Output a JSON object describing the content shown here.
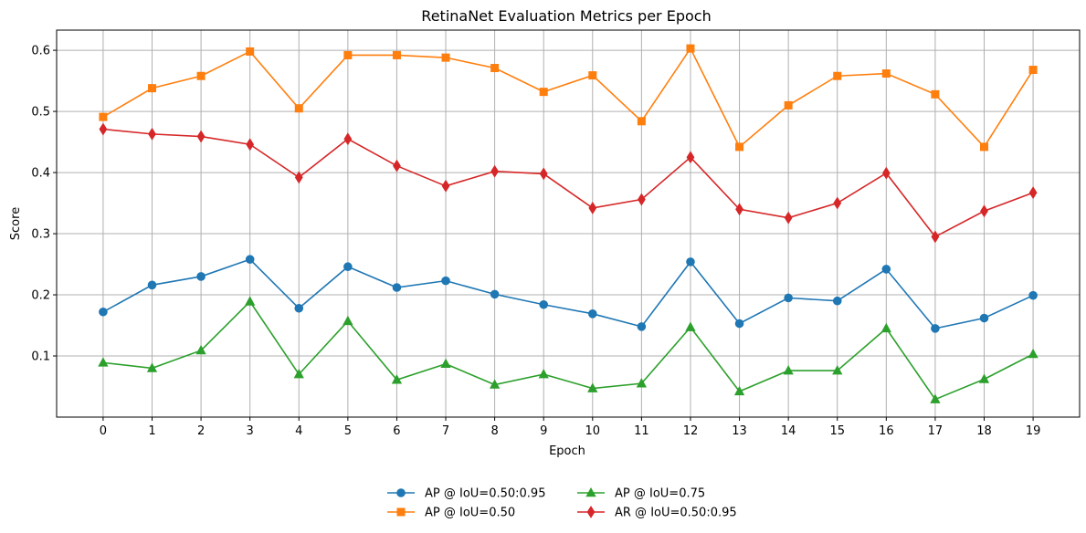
{
  "chart_data": {
    "type": "line",
    "title": "RetinaNet Evaluation Metrics per Epoch",
    "xlabel": "Epoch",
    "ylabel": "Score",
    "x": [
      0,
      1,
      2,
      3,
      4,
      5,
      6,
      7,
      8,
      9,
      10,
      11,
      12,
      13,
      14,
      15,
      16,
      17,
      18,
      19
    ],
    "xlim": [
      -0.95,
      19.95
    ],
    "ylim": [
      0.0,
      0.633
    ],
    "y_ticks": [
      0.1,
      0.2,
      0.3,
      0.4,
      0.5,
      0.6
    ],
    "y_tick_labels": [
      "0.1",
      "0.2",
      "0.3",
      "0.4",
      "0.5",
      "0.6"
    ],
    "x_tick_labels": [
      "0",
      "1",
      "2",
      "3",
      "4",
      "5",
      "6",
      "7",
      "8",
      "9",
      "10",
      "11",
      "12",
      "13",
      "14",
      "15",
      "16",
      "17",
      "18",
      "19"
    ],
    "grid": true,
    "legend_placement": "bottom-center",
    "series": [
      {
        "name": "AP @ IoU=0.50:0.95",
        "color": "#1f77b4",
        "marker": "circle",
        "values": [
          0.172,
          0.216,
          0.23,
          0.258,
          0.178,
          0.246,
          0.212,
          0.223,
          0.201,
          0.184,
          0.169,
          0.148,
          0.254,
          0.153,
          0.195,
          0.19,
          0.242,
          0.145,
          0.162,
          0.199
        ]
      },
      {
        "name": "AP @ IoU=0.50",
        "color": "#ff7f0e",
        "marker": "square",
        "values": [
          0.491,
          0.538,
          0.558,
          0.598,
          0.505,
          0.592,
          0.592,
          0.588,
          0.571,
          0.532,
          0.559,
          0.484,
          0.603,
          0.442,
          0.51,
          0.558,
          0.562,
          0.528,
          0.442,
          0.568
        ]
      },
      {
        "name": "AP @ IoU=0.75",
        "color": "#2ca02c",
        "marker": "triangle",
        "values": [
          0.089,
          0.08,
          0.109,
          0.189,
          0.07,
          0.157,
          0.061,
          0.087,
          0.053,
          0.07,
          0.047,
          0.055,
          0.147,
          0.042,
          0.076,
          0.076,
          0.145,
          0.029,
          0.062,
          0.103
        ]
      },
      {
        "name": "AR @ IoU=0.50:0.95",
        "color": "#d62728",
        "marker": "diamond",
        "values": [
          0.471,
          0.463,
          0.459,
          0.446,
          0.392,
          0.455,
          0.411,
          0.378,
          0.402,
          0.398,
          0.342,
          0.356,
          0.425,
          0.34,
          0.326,
          0.35,
          0.399,
          0.295,
          0.337,
          0.367
        ]
      }
    ]
  }
}
